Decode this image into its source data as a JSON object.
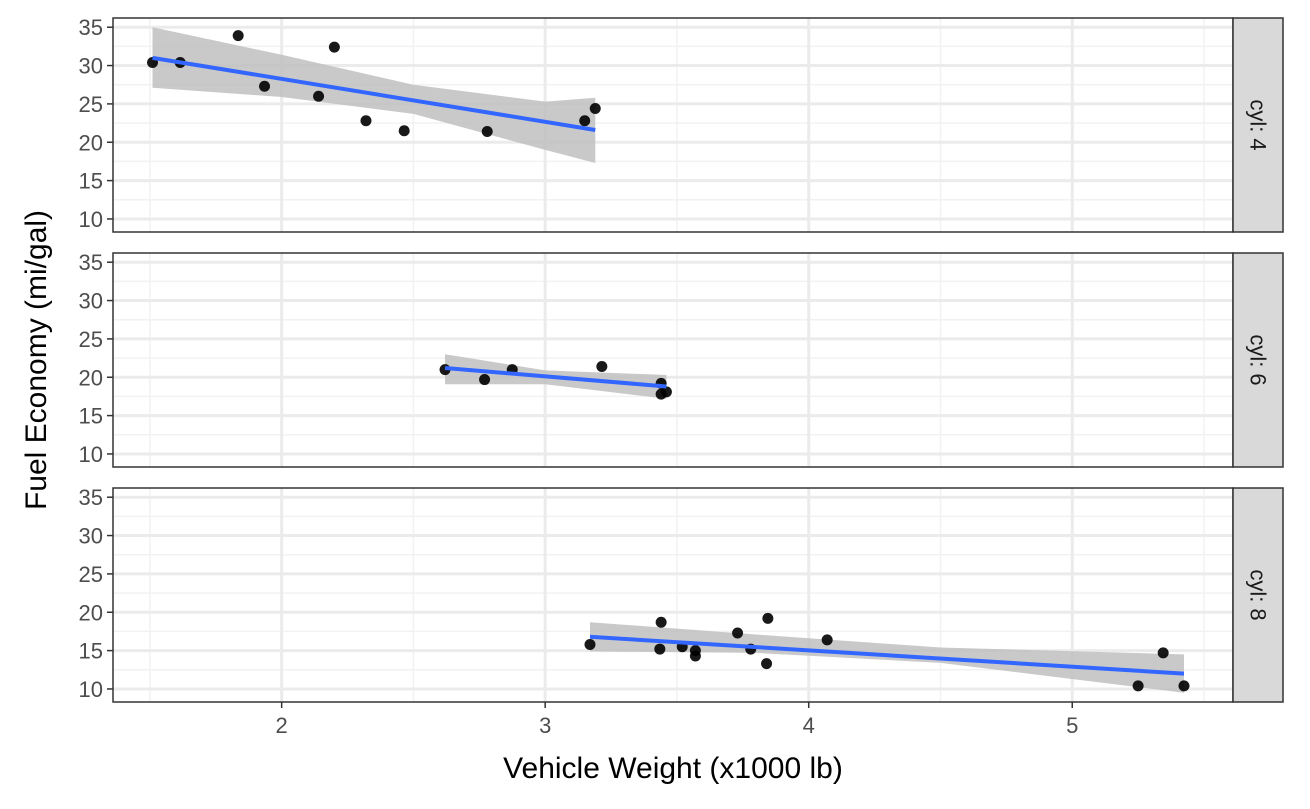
{
  "chart_data": {
    "type": "scatter",
    "title": "",
    "xlabel": "Vehicle Weight (x1000 lb)",
    "ylabel": "Fuel Economy (mi/gal)",
    "xlim": [
      1.36,
      5.61
    ],
    "ylim": [
      8.3,
      36.2
    ],
    "x_ticks": [
      2,
      3,
      4,
      5
    ],
    "y_ticks": [
      10,
      15,
      20,
      25,
      30,
      35
    ],
    "grid": true,
    "smoother": "linear fit with confidence band",
    "colors": {
      "points": "#000000",
      "fit_line": "#3366FF",
      "band": "#BFBFBF",
      "strip": "#D9D9D9"
    },
    "facets": [
      {
        "label": "cyl: 4",
        "points": [
          [
            1.51,
            30.4
          ],
          [
            1.615,
            30.4
          ],
          [
            1.835,
            33.9
          ],
          [
            1.935,
            27.3
          ],
          [
            2.14,
            26.0
          ],
          [
            2.2,
            32.4
          ],
          [
            2.32,
            22.8
          ],
          [
            2.465,
            21.5
          ],
          [
            2.78,
            21.4
          ],
          [
            3.15,
            22.8
          ],
          [
            3.19,
            24.4
          ]
        ],
        "fit": {
          "x0": 1.51,
          "y0": 31.0,
          "x1": 3.19,
          "y1": 21.6
        },
        "band_upper": [
          [
            1.51,
            35.0
          ],
          [
            2.0,
            31.4
          ],
          [
            2.5,
            27.5
          ],
          [
            3.0,
            25.3
          ],
          [
            3.19,
            25.8
          ]
        ],
        "band_lower": [
          [
            1.51,
            27.1
          ],
          [
            2.0,
            25.9
          ],
          [
            2.5,
            23.7
          ],
          [
            3.0,
            19.0
          ],
          [
            3.19,
            17.3
          ]
        ]
      },
      {
        "label": "cyl: 6",
        "points": [
          [
            2.62,
            21.0
          ],
          [
            2.77,
            19.7
          ],
          [
            2.875,
            21.0
          ],
          [
            3.215,
            21.4
          ],
          [
            3.44,
            19.2
          ],
          [
            3.44,
            17.8
          ],
          [
            3.46,
            18.1
          ]
        ],
        "fit": {
          "x0": 2.62,
          "y0": 21.2,
          "x1": 3.46,
          "y1": 18.8
        },
        "band_upper": [
          [
            2.62,
            23.0
          ],
          [
            3.0,
            20.9
          ],
          [
            3.46,
            20.3
          ]
        ],
        "band_lower": [
          [
            2.62,
            19.1
          ],
          [
            3.0,
            19.1
          ],
          [
            3.46,
            17.2
          ]
        ]
      },
      {
        "label": "cyl: 8",
        "points": [
          [
            3.17,
            15.8
          ],
          [
            3.435,
            15.2
          ],
          [
            3.44,
            18.7
          ],
          [
            3.52,
            15.5
          ],
          [
            3.57,
            15.0
          ],
          [
            3.57,
            14.3
          ],
          [
            3.73,
            17.3
          ],
          [
            3.78,
            15.2
          ],
          [
            3.84,
            13.3
          ],
          [
            3.845,
            19.2
          ],
          [
            4.07,
            16.4
          ],
          [
            5.25,
            10.4
          ],
          [
            5.345,
            14.7
          ],
          [
            5.424,
            10.4
          ]
        ],
        "fit": {
          "x0": 3.17,
          "y0": 16.8,
          "x1": 5.424,
          "y1": 12.0
        },
        "band_upper": [
          [
            3.17,
            18.7
          ],
          [
            3.8,
            17.1
          ],
          [
            4.5,
            15.4
          ],
          [
            5.424,
            14.5
          ]
        ],
        "band_lower": [
          [
            3.17,
            14.9
          ],
          [
            3.8,
            14.7
          ],
          [
            4.5,
            13.4
          ],
          [
            5.424,
            9.5
          ]
        ]
      }
    ]
  }
}
